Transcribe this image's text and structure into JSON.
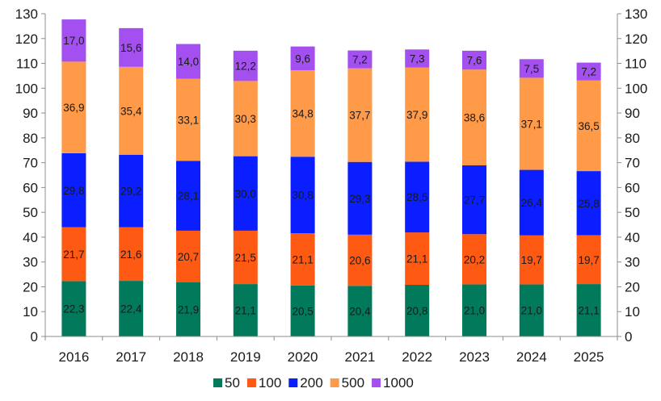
{
  "chart_data": {
    "type": "bar",
    "stacked": true,
    "categories": [
      "2016",
      "2017",
      "2018",
      "2019",
      "2020",
      "2021",
      "2022",
      "2023",
      "2024",
      "2025"
    ],
    "series": [
      {
        "name": "50",
        "color": "#007a5a",
        "values": [
          22.3,
          22.4,
          21.9,
          21.1,
          20.5,
          20.4,
          20.8,
          21.0,
          21.0,
          21.1
        ],
        "labels": [
          "22,3",
          "22,4",
          "21,9",
          "21,1",
          "20,5",
          "20,4",
          "20,8",
          "21,0",
          "21,0",
          "21,1"
        ]
      },
      {
        "name": "100",
        "color": "#ff5a14",
        "values": [
          21.7,
          21.6,
          20.7,
          21.5,
          21.1,
          20.6,
          21.1,
          20.2,
          19.7,
          19.7
        ],
        "labels": [
          "21,7",
          "21,6",
          "20,7",
          "21,5",
          "21,1",
          "20,6",
          "21,1",
          "20,2",
          "19,7",
          "19,7"
        ]
      },
      {
        "name": "200",
        "color": "#0a1eff",
        "values": [
          29.8,
          29.2,
          28.1,
          30.0,
          30.8,
          29.3,
          28.5,
          27.7,
          26.4,
          25.8
        ],
        "labels": [
          "29,8",
          "29,2",
          "28,1",
          "30,0",
          "30,8",
          "29,3",
          "28,5",
          "27,7",
          "26,4",
          "25,8"
        ]
      },
      {
        "name": "500",
        "color": "#ff9a48",
        "values": [
          36.9,
          35.4,
          33.1,
          30.3,
          34.8,
          37.7,
          37.9,
          38.6,
          37.1,
          36.5
        ],
        "labels": [
          "36,9",
          "35,4",
          "33,1",
          "30,3",
          "34,8",
          "37,7",
          "37,9",
          "38,6",
          "37,1",
          "36,5"
        ]
      },
      {
        "name": "1000",
        "color": "#a450f0",
        "values": [
          17.0,
          15.6,
          14.0,
          12.2,
          9.6,
          7.2,
          7.3,
          7.6,
          7.5,
          7.2
        ],
        "labels": [
          "17,0",
          "15,6",
          "14,0",
          "12,2",
          "9,6",
          "7,2",
          "7,3",
          "7,6",
          "7,5",
          "7,2"
        ]
      }
    ],
    "yticks": [
      "0",
      "10",
      "20",
      "30",
      "40",
      "50",
      "60",
      "70",
      "80",
      "90",
      "100",
      "110",
      "120",
      "130"
    ],
    "ylim": [
      0,
      130
    ],
    "ytick_step": 10,
    "secondary_axis": true,
    "grid": false,
    "legend_position": "bottom",
    "title": "",
    "xlabel": "",
    "ylabel": ""
  }
}
